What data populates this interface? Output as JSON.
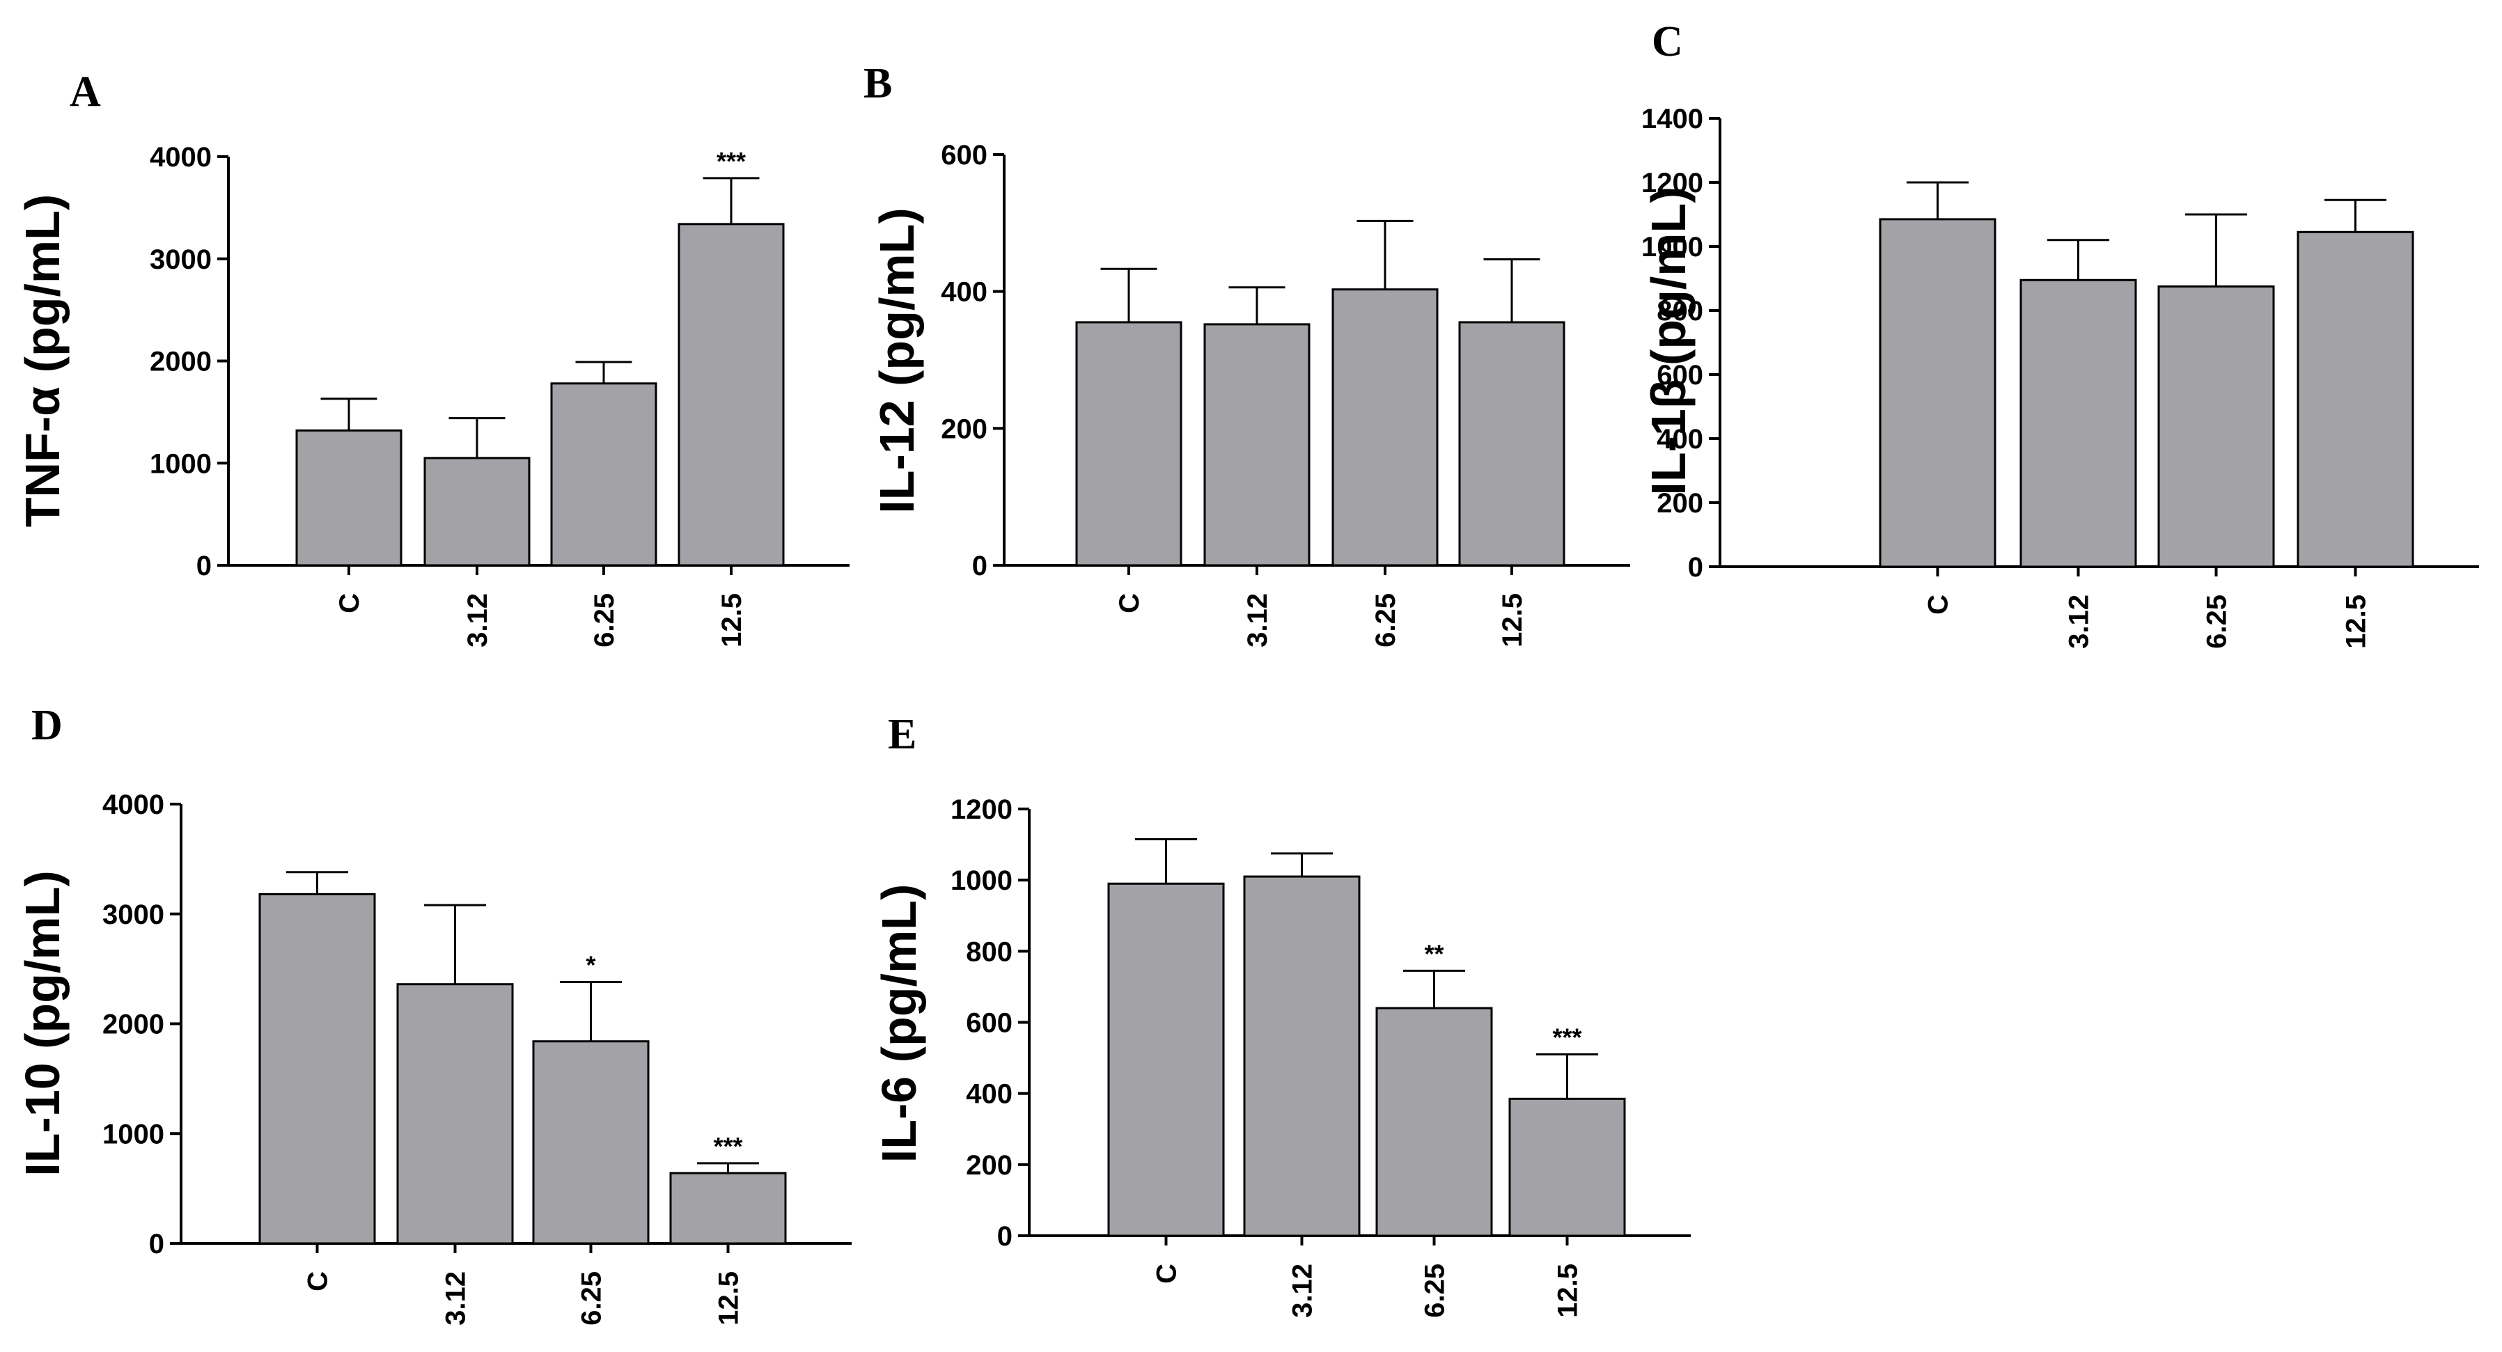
{
  "colors": {
    "bar_fill": "#a3a3a7",
    "axis": "#000000"
  },
  "chart_data": [
    {
      "panel": "A",
      "type": "bar",
      "ylabel": "TNF-α (pg/mL)",
      "ylim": [
        0,
        4000
      ],
      "yticks": [
        "0",
        "1000",
        "2000",
        "3000",
        "4000"
      ],
      "categories": [
        "C",
        "3.12",
        "6.25",
        "12.5"
      ],
      "values": [
        1320,
        1050,
        1780,
        3340
      ],
      "errors": [
        310,
        390,
        210,
        450
      ],
      "significance": [
        "",
        "",
        "",
        "***"
      ]
    },
    {
      "panel": "B",
      "type": "bar",
      "ylabel": "IL-12 (pg/mL)",
      "ylim": [
        0,
        600
      ],
      "yticks": [
        "0",
        "200",
        "400",
        "600"
      ],
      "categories": [
        "C",
        "3.12",
        "6.25",
        "12.5"
      ],
      "values": [
        355,
        352,
        403,
        355
      ],
      "errors": [
        78,
        54,
        100,
        92
      ],
      "significance": [
        "",
        "",
        "",
        ""
      ]
    },
    {
      "panel": "C",
      "type": "bar",
      "ylabel": "IL-1β (pg/mL)",
      "ylim": [
        0,
        1400
      ],
      "yticks": [
        "0",
        "200",
        "400",
        "600",
        "800",
        "1000",
        "1200",
        "1400"
      ],
      "categories": [
        "C",
        "3.12",
        "6.25",
        "12.5"
      ],
      "values": [
        1085,
        895,
        875,
        1045
      ],
      "errors": [
        115,
        125,
        225,
        100
      ],
      "significance": [
        "",
        "",
        "",
        ""
      ]
    },
    {
      "panel": "D",
      "type": "bar",
      "ylabel": "IL-10 (pg/mL)",
      "ylim": [
        0,
        4000
      ],
      "yticks": [
        "0",
        "1000",
        "2000",
        "3000",
        "4000"
      ],
      "categories": [
        "C",
        "3.12",
        "6.25",
        "12.5"
      ],
      "values": [
        3180,
        2360,
        1840,
        640
      ],
      "errors": [
        200,
        720,
        540,
        90
      ],
      "significance": [
        "",
        "",
        "*",
        "***"
      ]
    },
    {
      "panel": "E",
      "type": "bar",
      "ylabel": "IL-6 (pg/mL)",
      "ylim": [
        0,
        1200
      ],
      "yticks": [
        "0",
        "200",
        "400",
        "600",
        "800",
        "1000",
        "1200"
      ],
      "categories": [
        "C",
        "3.12",
        "6.25",
        "12.5"
      ],
      "values": [
        990,
        1010,
        640,
        385
      ],
      "errors": [
        125,
        65,
        105,
        125
      ],
      "significance": [
        "",
        "",
        "**",
        "***"
      ]
    }
  ]
}
